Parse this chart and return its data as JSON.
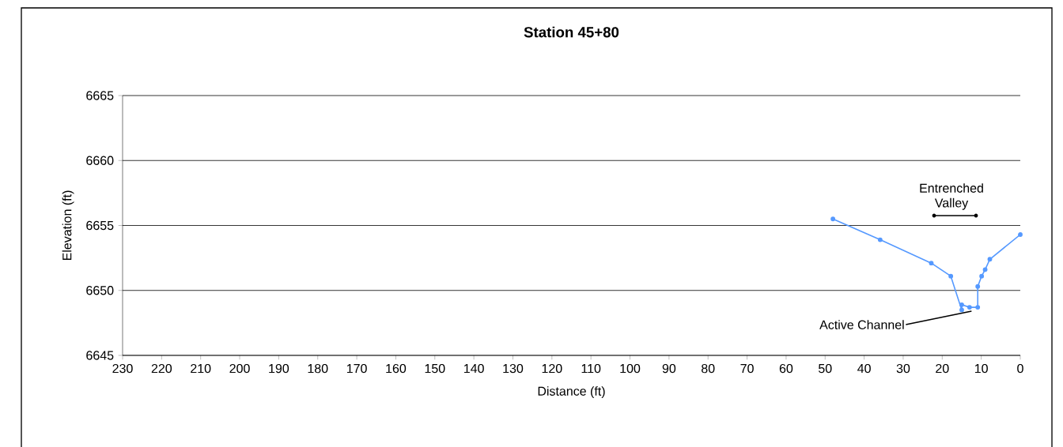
{
  "chart_data": {
    "type": "line",
    "title": "Station 45+80",
    "xlabel": "Distance (ft)",
    "ylabel": "Elevation (ft)",
    "series": [
      {
        "color": "#5599ff",
        "x": [
          48.0,
          35.9,
          22.8,
          17.8,
          15.0,
          15.0,
          13.0,
          10.9,
          10.9,
          9.9,
          9.0,
          7.8,
          0
        ],
        "values": [
          6655.5,
          6653.9,
          6652.1,
          6651.1,
          6648.5,
          6648.9,
          6648.7,
          6648.7,
          6650.3,
          6651.1,
          6651.6,
          6652.4,
          6654.3
        ]
      }
    ],
    "xlim": [
      230,
      0
    ],
    "ylim": [
      6645,
      6665
    ],
    "xticks": [
      230,
      220,
      210,
      200,
      190,
      180,
      170,
      160,
      150,
      140,
      130,
      120,
      110,
      100,
      90,
      80,
      70,
      60,
      50,
      40,
      30,
      20,
      10,
      0
    ],
    "yticks": [
      6645,
      6650,
      6655,
      6660,
      6665
    ],
    "grid": "y",
    "marker": "circle",
    "line_style": "solid",
    "annotations": [
      "Entrenched Valley",
      {
        "text": "Active Channel",
        "x": 12.5,
        "y": 6648.4
      }
    ]
  }
}
